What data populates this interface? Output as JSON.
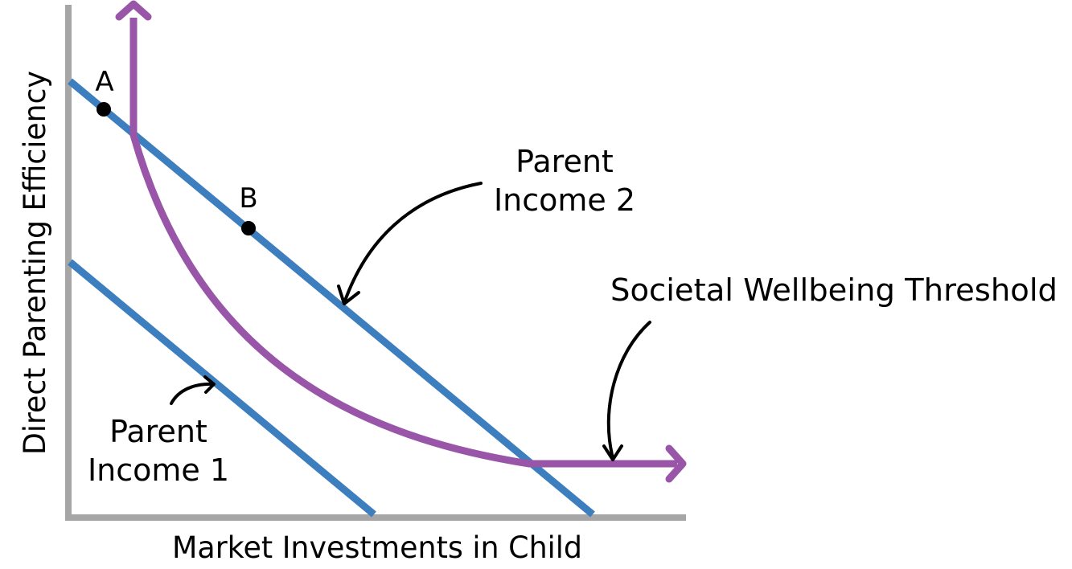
{
  "diagram": {
    "x_axis_label": "Market Investments in Child",
    "y_axis_label": "Direct Parenting Efficiency",
    "budget_lines": [
      {
        "label_line1": "Parent",
        "label_line2": "Income 1"
      },
      {
        "label_line1": "Parent",
        "label_line2": "Income 2"
      }
    ],
    "threshold_curve": {
      "label": "Societal Wellbeing Threshold"
    },
    "points": [
      {
        "label": "A"
      },
      {
        "label": "B"
      }
    ],
    "colors": {
      "axis": "#a6a6a6",
      "budget_line": "#3d7ebf",
      "threshold": "#9955a8",
      "pointer": "#000000",
      "point": "#000000"
    }
  }
}
